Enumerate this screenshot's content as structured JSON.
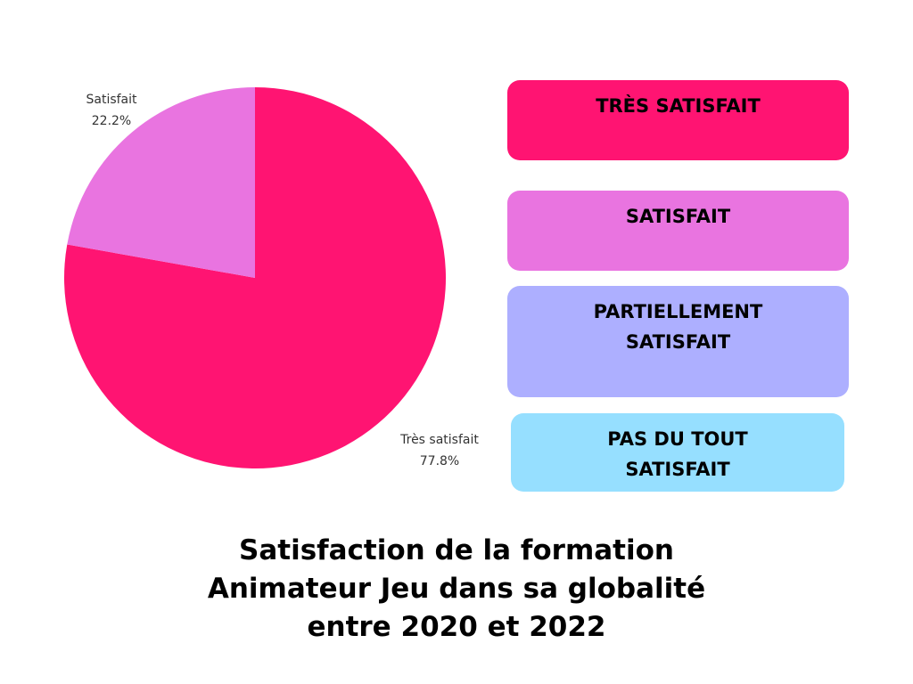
{
  "chart_data": {
    "type": "pie",
    "title_lines": [
      "Satisfaction de la formation",
      "Animateur Jeu dans sa globalité",
      "entre 2020 et 2022"
    ],
    "slices": [
      {
        "name": "Très satisfait",
        "value": 77.8,
        "value_label": "77.8%",
        "color": "#FF1472"
      },
      {
        "name": "Satisfait",
        "value": 22.2,
        "value_label": "22.2%",
        "color": "#E974E0"
      }
    ],
    "legend": [
      {
        "label": "TRÈS SATISFAIT",
        "color": "#FF1472"
      },
      {
        "label": "SATISFAIT",
        "color": "#E974E0"
      },
      {
        "label": "PARTIELLEMENT SATISFAIT",
        "color": "#ADAFFF"
      },
      {
        "label": "PAS DU TOUT SATISFAIT",
        "color": "#96DFFF"
      }
    ],
    "legend_placement": "right"
  }
}
